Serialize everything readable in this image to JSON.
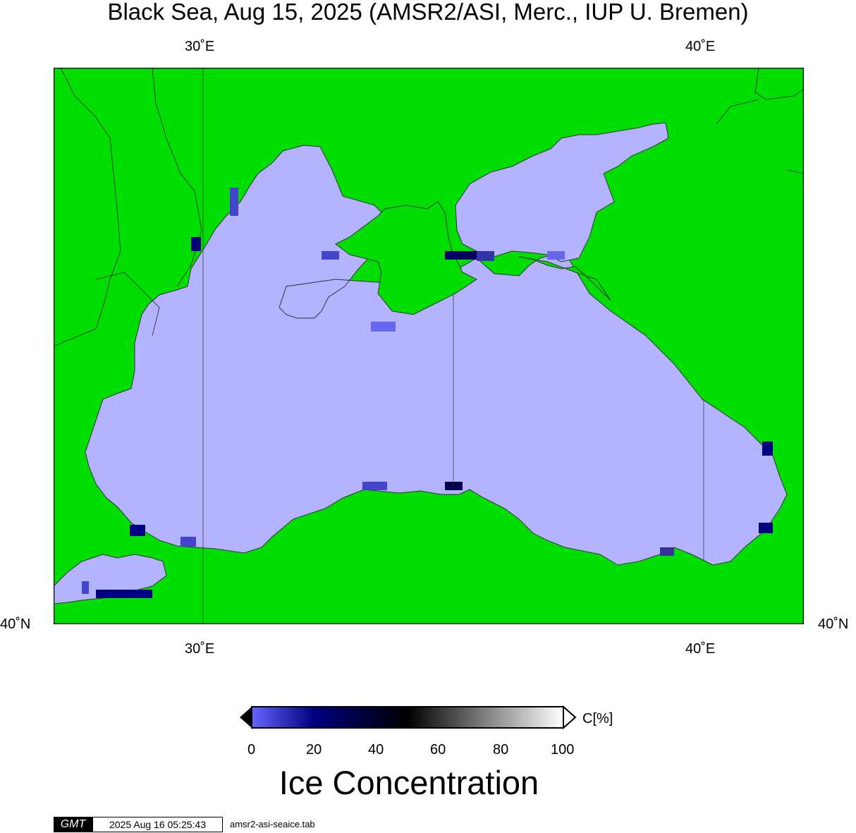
{
  "title": "Black Sea, Aug 15, 2025 (AMSR2/ASI, Merc., IUP U. Bremen)",
  "axes": {
    "lon_ticks": [
      "30˚E",
      "40˚E"
    ],
    "lat_ticks": [
      "40˚N",
      "40˚N"
    ]
  },
  "colors": {
    "land": "#00dd00",
    "water": "#b3b3ff",
    "coast": "#333333"
  },
  "colorbar": {
    "unit_label": "C[%]",
    "ticks": [
      "0",
      "20",
      "40",
      "60",
      "80",
      "100"
    ],
    "title": "Ice Concentration",
    "stops": [
      "#6666ff",
      "#000080",
      "#000000",
      "#808080",
      "#ffffff"
    ]
  },
  "footer": {
    "logo": "GMT",
    "timestamp": "2025 Aug 16 05:25:43",
    "filename": "amsr2-asi-seaice.tab"
  }
}
